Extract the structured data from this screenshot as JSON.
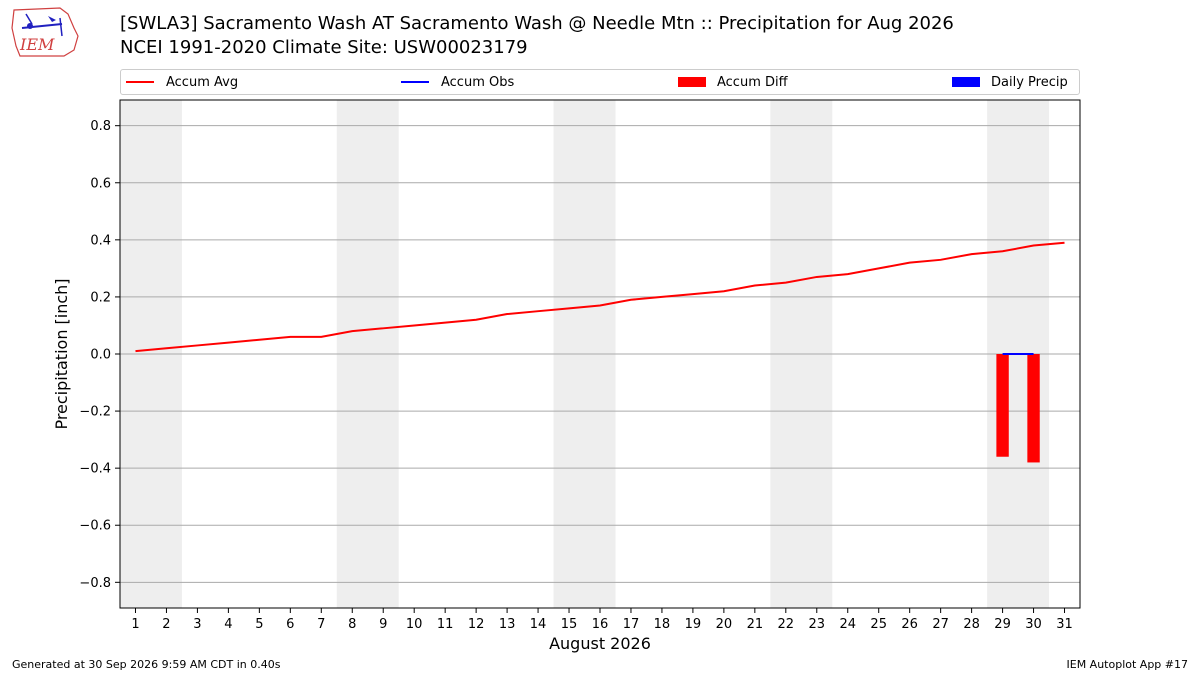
{
  "logo": {
    "text": "IEM"
  },
  "header": {
    "title_line1": "[SWLA3] Sacramento Wash  AT Sacramento Wash @ Needle Mtn :: Precipitation for Aug 2026",
    "title_line2": "NCEI 1991-2020 Climate Site: USW00023179"
  },
  "legend": {
    "accum_avg": "Accum Avg",
    "accum_obs": "Accum Obs",
    "accum_diff": "Accum Diff",
    "daily_precip": "Daily Precip"
  },
  "footer": {
    "generated": "Generated at 30 Sep 2026 9:59 AM CDT in 0.40s",
    "app": "IEM Autoplot App #17"
  },
  "colors": {
    "accum_avg": "#ff0000",
    "accum_obs": "#0000ff",
    "accum_diff": "#ff0000",
    "daily_precip": "#0000ff",
    "weekend_shade": "#eeeeee",
    "grid": "#aaaaaa"
  },
  "chart_data": {
    "type": "line",
    "xlabel": "August 2026",
    "ylabel": "Precipitation [inch]",
    "xlim": [
      0.5,
      31.5
    ],
    "ylim": [
      -0.89,
      0.89
    ],
    "yticks": [
      -0.8,
      -0.6,
      -0.4,
      -0.2,
      0.0,
      0.2,
      0.4,
      0.6,
      0.8
    ],
    "ytick_labels": [
      "−0.8",
      "−0.6",
      "−0.4",
      "−0.2",
      "0.0",
      "0.2",
      "0.4",
      "0.6",
      "0.8"
    ],
    "x": [
      1,
      2,
      3,
      4,
      5,
      6,
      7,
      8,
      9,
      10,
      11,
      12,
      13,
      14,
      15,
      16,
      17,
      18,
      19,
      20,
      21,
      22,
      23,
      24,
      25,
      26,
      27,
      28,
      29,
      30,
      31
    ],
    "x_tick_labels": [
      "1",
      "2",
      "3",
      "4",
      "5",
      "6",
      "7",
      "8",
      "9",
      "10",
      "11",
      "12",
      "13",
      "14",
      "15",
      "16",
      "17",
      "18",
      "19",
      "20",
      "21",
      "22",
      "23",
      "24",
      "25",
      "26",
      "27",
      "28",
      "29",
      "30",
      "31"
    ],
    "grid": "horizontal",
    "legend_position": "top",
    "weekend_spans": [
      [
        0.5,
        2.5
      ],
      [
        7.5,
        9.5
      ],
      [
        14.5,
        16.5
      ],
      [
        21.5,
        23.5
      ],
      [
        28.5,
        30.5
      ]
    ],
    "series": [
      {
        "name": "Accum Avg",
        "kind": "line",
        "x": [
          1,
          2,
          3,
          4,
          5,
          6,
          7,
          8,
          9,
          10,
          11,
          12,
          13,
          14,
          15,
          16,
          17,
          18,
          19,
          20,
          21,
          22,
          23,
          24,
          25,
          26,
          27,
          28,
          29,
          30,
          31
        ],
        "values": [
          0.01,
          0.02,
          0.03,
          0.04,
          0.05,
          0.06,
          0.06,
          0.08,
          0.09,
          0.1,
          0.11,
          0.12,
          0.14,
          0.15,
          0.16,
          0.17,
          0.19,
          0.2,
          0.21,
          0.22,
          0.24,
          0.25,
          0.27,
          0.28,
          0.3,
          0.32,
          0.33,
          0.35,
          0.36,
          0.38,
          0.39
        ]
      },
      {
        "name": "Accum Obs",
        "kind": "line",
        "x": [
          29,
          30
        ],
        "values": [
          0.0,
          0.0
        ]
      },
      {
        "name": "Accum Diff",
        "kind": "bar",
        "x": [
          29,
          30
        ],
        "values": [
          -0.36,
          -0.38
        ]
      },
      {
        "name": "Daily Precip",
        "kind": "bar",
        "x": [
          29,
          30
        ],
        "values": [
          0.0,
          0.0
        ]
      }
    ]
  }
}
